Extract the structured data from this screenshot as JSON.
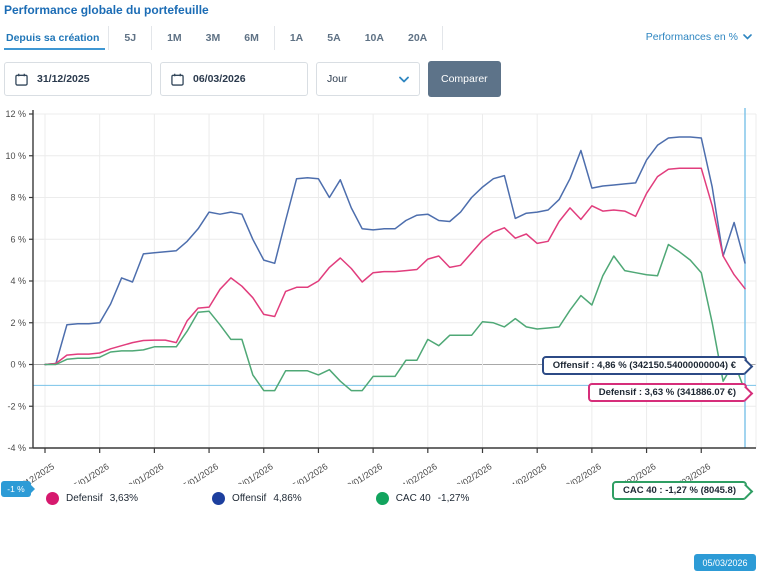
{
  "header": {
    "title": "Performance globale du portefeuille",
    "performances_link": "Performances en %"
  },
  "tabs": {
    "items": [
      {
        "label": "Depuis sa création",
        "active": true
      },
      {
        "label": "5J",
        "active": false
      },
      {
        "label": "1M",
        "active": false
      },
      {
        "label": "3M",
        "active": false
      },
      {
        "label": "6M",
        "active": false
      },
      {
        "label": "1A",
        "active": false
      },
      {
        "label": "5A",
        "active": false
      },
      {
        "label": "10A",
        "active": false
      },
      {
        "label": "20A",
        "active": false
      }
    ]
  },
  "controls": {
    "start_date": "31/12/2025",
    "end_date": "06/03/2026",
    "interval": "Jour",
    "compare_label": "Comparer"
  },
  "tooltips": {
    "items": [
      {
        "text": "Offensif : 4,86 % (342150.54000000004) €",
        "color": "#2c4a85"
      },
      {
        "text": "Defensif : 3,63 % (341886.07 €)",
        "color": "#d62e7a"
      },
      {
        "text": "CAC 40 : -1,27 % (8045.8)",
        "color": "#2f9e63"
      }
    ]
  },
  "legend": {
    "items": [
      {
        "label": "Defensif",
        "value": "3,63%",
        "color": "#d6196e"
      },
      {
        "label": "Offensif",
        "value": "4,86%",
        "color": "#1d3f9e"
      },
      {
        "label": "CAC 40",
        "value": "-1,27%",
        "color": "#12a45e"
      }
    ]
  },
  "chart_data": {
    "type": "line",
    "ylim": [
      -4,
      12
    ],
    "grid": true,
    "y_ticks": [
      12,
      10,
      8,
      6,
      4,
      2,
      0,
      -2,
      -4
    ],
    "y_tick_labels": [
      "12 %",
      "10 %",
      "8 %",
      "6 %",
      "4 %",
      "2 %",
      "0 %",
      "-2 %",
      "-4 %"
    ],
    "x_tick_indices": [
      0,
      5,
      10,
      15,
      20,
      25,
      30,
      35,
      40,
      45,
      50,
      55,
      60
    ],
    "x_tick_labels": [
      "31/12/2025",
      "05/01/2026",
      "10/01/2026",
      "15/01/2026",
      "20/01/2026",
      "25/01/2026",
      "30/01/2026",
      "04/02/2026",
      "09/02/2026",
      "14/02/2026",
      "19/02/2026",
      "24/02/2026",
      "01/03/2026"
    ],
    "dates": [
      "31/12/2025",
      "01/01/2026",
      "02/01/2026",
      "03/01/2026",
      "04/01/2026",
      "05/01/2026",
      "06/01/2026",
      "07/01/2026",
      "08/01/2026",
      "09/01/2026",
      "10/01/2026",
      "11/01/2026",
      "12/01/2026",
      "13/01/2026",
      "14/01/2026",
      "15/01/2026",
      "16/01/2026",
      "17/01/2026",
      "18/01/2026",
      "19/01/2026",
      "20/01/2026",
      "21/01/2026",
      "22/01/2026",
      "23/01/2026",
      "24/01/2026",
      "25/01/2026",
      "26/01/2026",
      "27/01/2026",
      "28/01/2026",
      "29/01/2026",
      "30/01/2026",
      "31/01/2026",
      "01/02/2026",
      "02/02/2026",
      "03/02/2026",
      "04/02/2026",
      "05/02/2026",
      "06/02/2026",
      "07/02/2026",
      "08/02/2026",
      "09/02/2026",
      "10/02/2026",
      "11/02/2026",
      "12/02/2026",
      "13/02/2026",
      "14/02/2026",
      "15/02/2026",
      "16/02/2026",
      "17/02/2026",
      "18/02/2026",
      "19/02/2026",
      "20/02/2026",
      "21/02/2026",
      "22/02/2026",
      "23/02/2026",
      "24/02/2026",
      "25/02/2026",
      "26/02/2026",
      "27/02/2026",
      "28/02/2026",
      "01/03/2026",
      "02/03/2026",
      "03/03/2026",
      "04/03/2026",
      "05/03/2026"
    ],
    "series": [
      {
        "name": "Offensif",
        "color": "#4d6ead",
        "final": "4,86 %",
        "values": [
          0,
          0.05,
          1.9,
          1.95,
          1.95,
          2.0,
          2.9,
          4.15,
          3.95,
          5.3,
          5.35,
          5.4,
          5.45,
          5.9,
          6.5,
          7.3,
          7.2,
          7.3,
          7.2,
          6.0,
          5.0,
          4.85,
          6.9,
          8.9,
          8.95,
          8.9,
          8.0,
          8.85,
          7.5,
          6.5,
          6.45,
          6.5,
          6.5,
          6.9,
          7.15,
          7.2,
          6.9,
          6.85,
          7.3,
          8.0,
          8.5,
          8.9,
          9.05,
          7.0,
          7.25,
          7.3,
          7.4,
          7.9,
          8.9,
          10.25,
          8.45,
          8.55,
          8.6,
          8.65,
          8.7,
          9.8,
          10.5,
          10.85,
          10.9,
          10.9,
          10.85,
          8.5,
          5.2,
          6.8,
          4.86
        ]
      },
      {
        "name": "Defensif",
        "color": "#e13d7d",
        "final": "3,63 %",
        "values": [
          0,
          0.05,
          0.45,
          0.5,
          0.5,
          0.55,
          0.75,
          0.9,
          1.05,
          1.15,
          1.17,
          1.17,
          1.05,
          2.1,
          2.7,
          2.75,
          3.6,
          4.15,
          3.75,
          3.2,
          2.4,
          2.3,
          3.5,
          3.7,
          3.7,
          4.0,
          4.65,
          5.1,
          4.6,
          3.95,
          4.4,
          4.45,
          4.45,
          4.5,
          4.55,
          5.05,
          5.2,
          4.65,
          4.75,
          5.35,
          5.95,
          6.35,
          6.55,
          6.05,
          6.25,
          5.8,
          5.9,
          6.85,
          7.5,
          6.95,
          7.6,
          7.35,
          7.4,
          7.35,
          7.1,
          8.2,
          9.0,
          9.35,
          9.4,
          9.4,
          9.4,
          7.6,
          5.2,
          4.3,
          3.63
        ]
      },
      {
        "name": "CAC 40",
        "color": "#4fa876",
        "final": "-1,27 %",
        "values": [
          0,
          0,
          0.25,
          0.3,
          0.3,
          0.35,
          0.6,
          0.65,
          0.65,
          0.7,
          0.85,
          0.85,
          0.85,
          1.6,
          2.5,
          2.55,
          1.9,
          1.2,
          1.2,
          -0.5,
          -1.25,
          -1.25,
          -0.3,
          -0.3,
          -0.3,
          -0.5,
          -0.25,
          -0.8,
          -1.25,
          -1.25,
          -0.57,
          -0.57,
          -0.57,
          0.2,
          0.2,
          1.2,
          0.9,
          1.4,
          1.4,
          1.4,
          2.05,
          2.0,
          1.8,
          2.2,
          1.8,
          1.7,
          1.75,
          1.8,
          2.6,
          3.3,
          2.85,
          4.25,
          5.2,
          4.5,
          4.4,
          4.3,
          4.25,
          5.75,
          5.4,
          5.0,
          4.4,
          2.0,
          -0.8,
          0.1,
          -1.27
        ]
      }
    ],
    "crosshair": {
      "x_index": 64,
      "y_pct": -1,
      "line_color": "#7ac2e8",
      "x_label": "05/03/2026",
      "y_label": "-1 %",
      "badge_color": "#2d9bd6"
    }
  },
  "colors": {
    "accent_blue": "#2e86c1",
    "title_blue": "#1b6cb5",
    "button_bg": "#5d7389",
    "grid": "#ececec",
    "zero_line": "#a8a8a8",
    "axis": "#3a3a3a"
  }
}
